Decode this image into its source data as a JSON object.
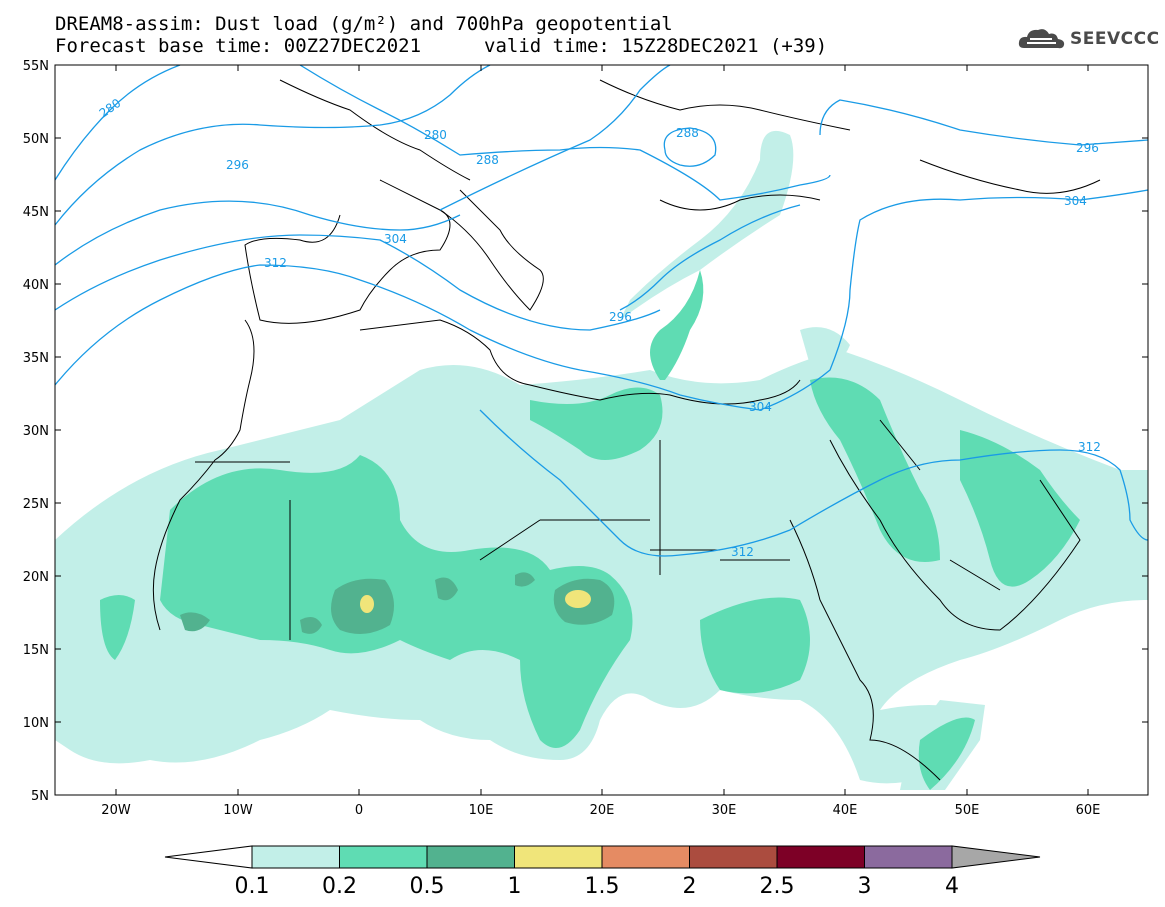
{
  "header": {
    "title_line1": "DREAM8-assim: Dust load (g/m²) and 700hPa geopotential",
    "title_line2": "Forecast base time: 00Z27DEC2021",
    "valid_time": "valid time: 15Z28DEC2021 (+39)",
    "logo_text": "SEEVCCC",
    "logo_icon": "cloud-logo-icon"
  },
  "map": {
    "lat_labels": [
      "55N",
      "50N",
      "45N",
      "40N",
      "35N",
      "30N",
      "25N",
      "20N",
      "15N",
      "10N",
      "5N"
    ],
    "lon_labels": [
      "20W",
      "10W",
      "0",
      "10E",
      "20E",
      "30E",
      "40E",
      "50E",
      "60E"
    ],
    "contour_labels": [
      "280",
      "280",
      "288",
      "288",
      "296",
      "296",
      "304",
      "312",
      "296",
      "304",
      "304",
      "312",
      "312"
    ],
    "contour_color": "#1a9be6"
  },
  "colorbar": {
    "levels": [
      "0.1",
      "0.2",
      "0.5",
      "1",
      "1.5",
      "2",
      "2.5",
      "3",
      "4"
    ],
    "colors": [
      "#c2efe8",
      "#5fdcb3",
      "#52b28f",
      "#f0e57a",
      "#e58b63",
      "#ab4c3f",
      "#7d0026",
      "#8b6a9e"
    ],
    "under_color": "#ffffff",
    "over_color": "#a7a7a7"
  }
}
